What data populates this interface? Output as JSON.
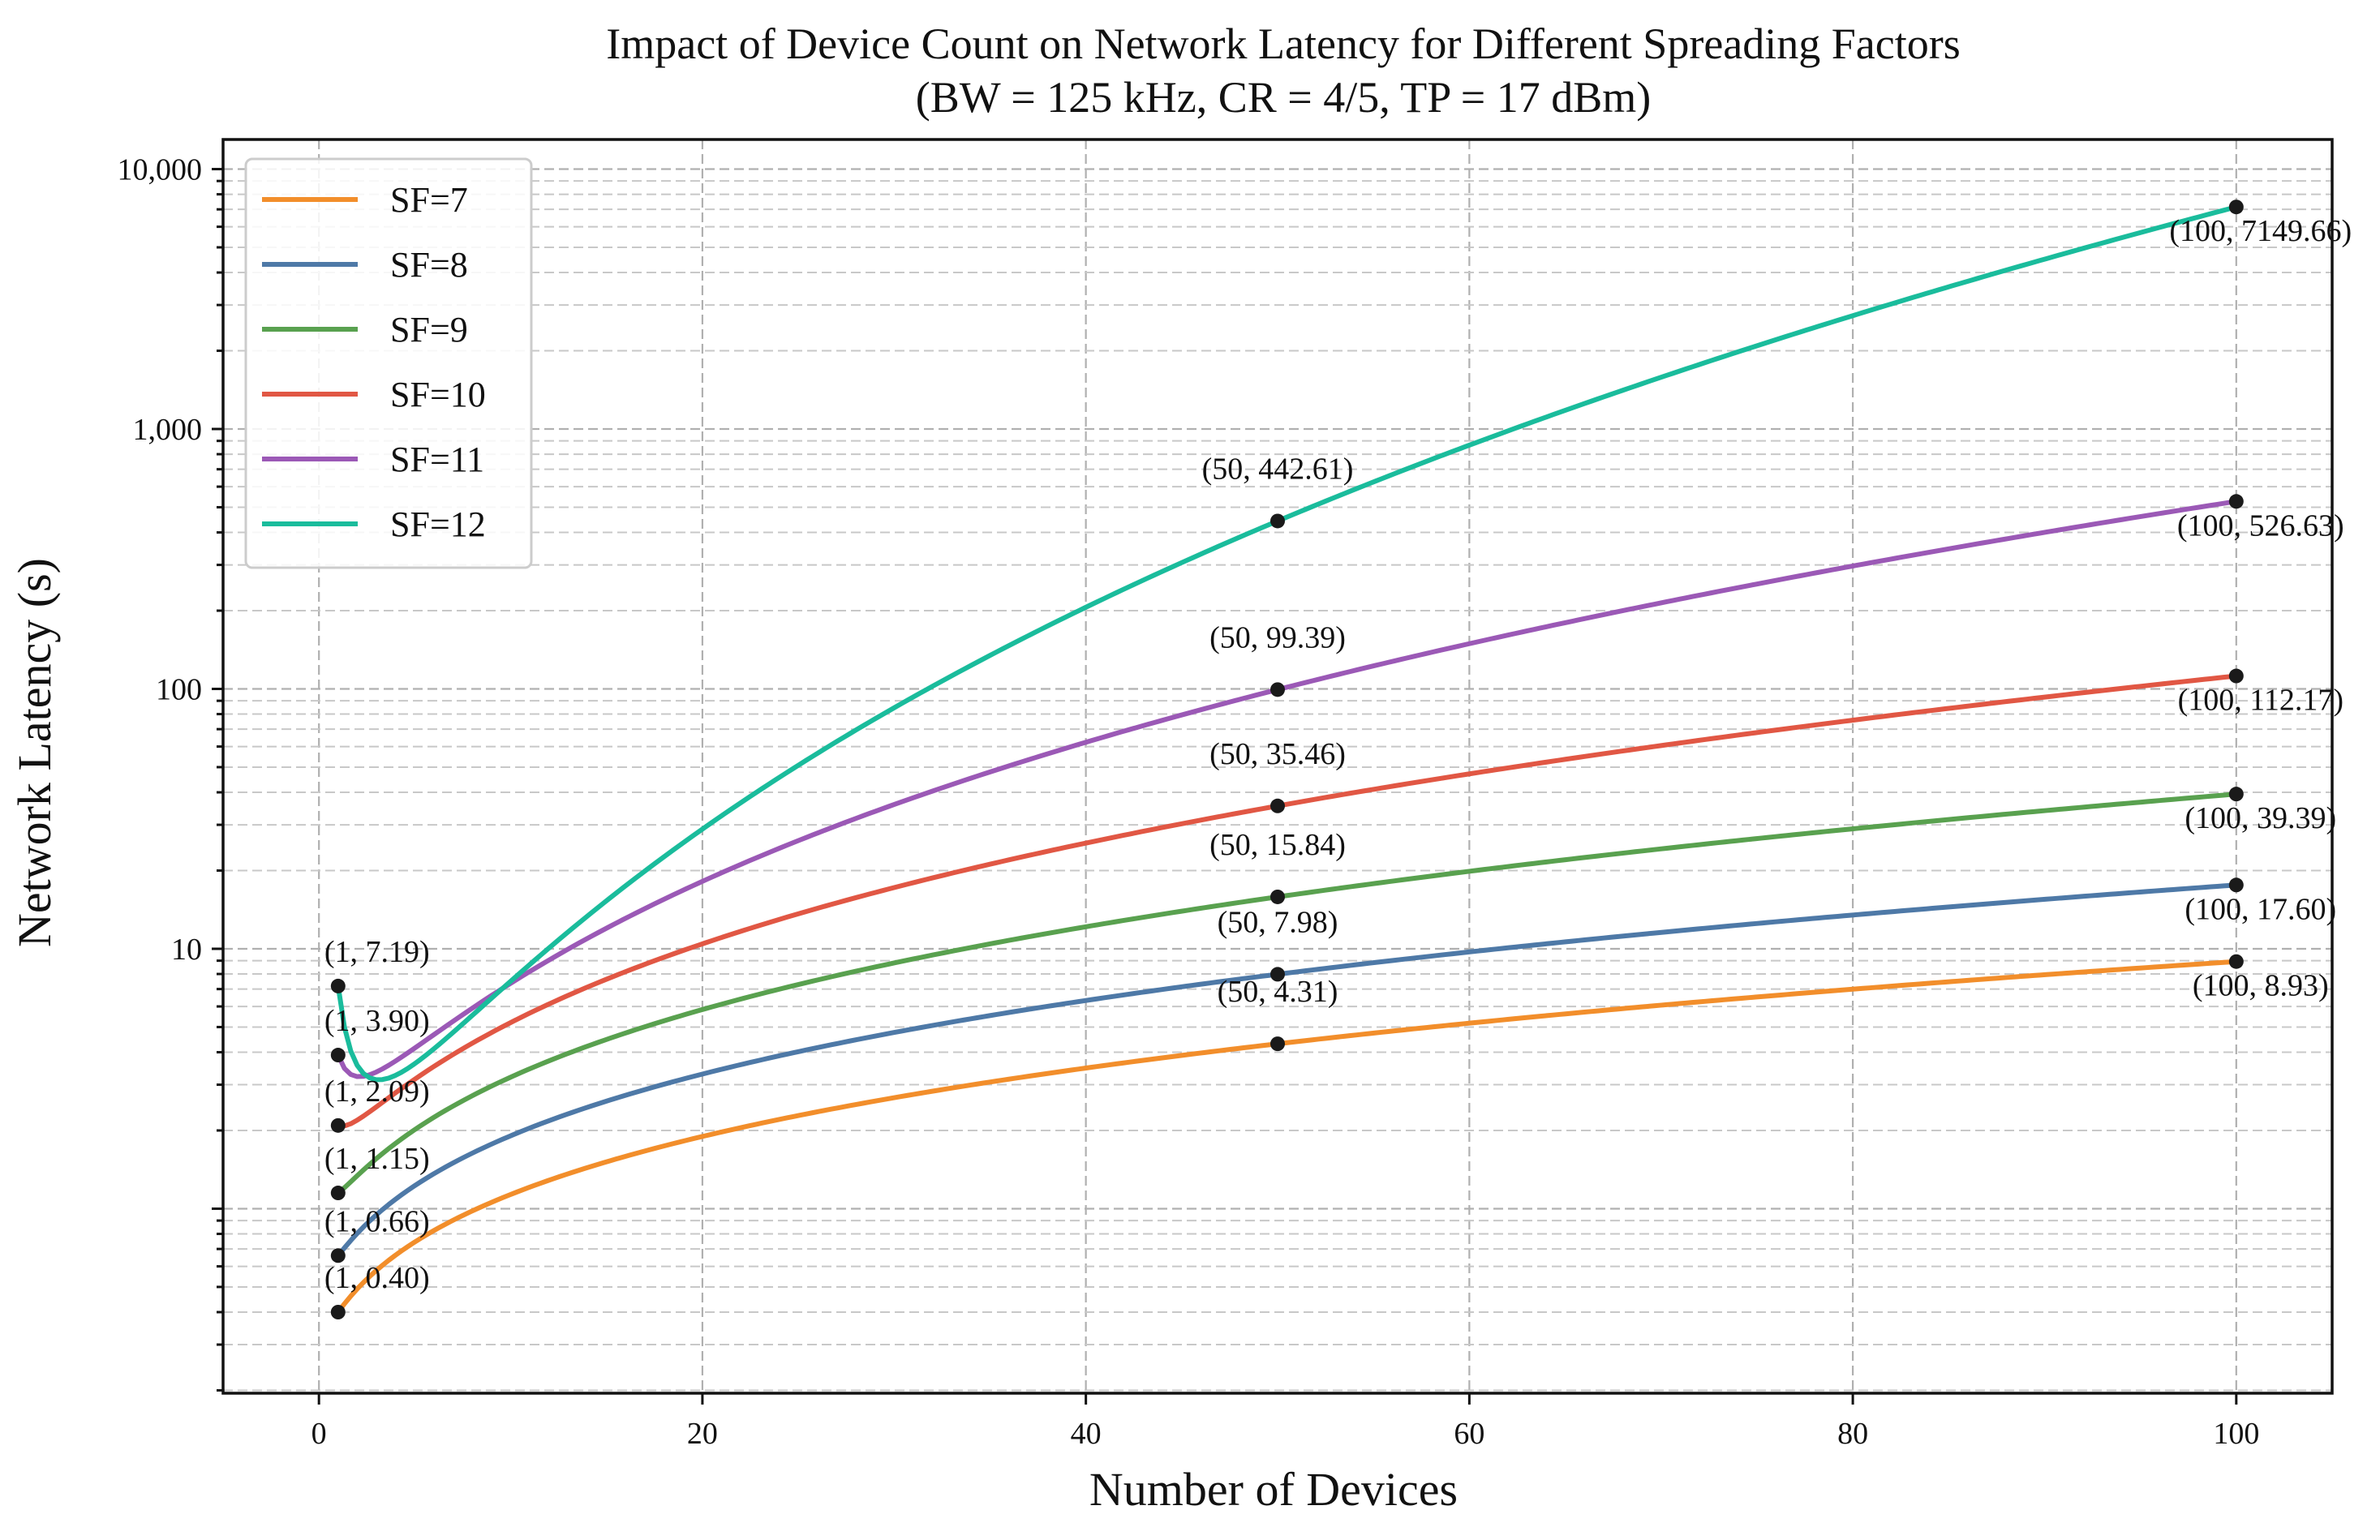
{
  "chart_data": {
    "type": "line",
    "title": "Impact of Device Count on Network Latency for Different Spreading Factors",
    "subtitle": "(BW = 125 kHz, CR = 4/5, TP = 17 dBm)",
    "xlabel": "Number of Devices",
    "ylabel": "Network Latency (s)",
    "xlim": [
      -5,
      105
    ],
    "ylim": [
      0.195,
      13000
    ],
    "yscale": "log",
    "grid": true,
    "legend_position": "top-left",
    "x_ticks": [
      0,
      20,
      40,
      60,
      80,
      100
    ],
    "x_tick_labels": [
      "0",
      "20",
      "40",
      "60",
      "80",
      "100"
    ],
    "y_ticks": [
      10,
      100,
      1000,
      10000
    ],
    "y_tick_labels": [
      "10",
      "100",
      "1,000",
      "10,000"
    ],
    "series": [
      {
        "name": "SF=7",
        "color": "#f28e2b",
        "points": [
          [
            1,
            0.4
          ],
          [
            50,
            4.31
          ],
          [
            100,
            8.93
          ]
        ],
        "labels": [
          "(1, 0.40)",
          "(50, 4.31)",
          "(100, 8.93)"
        ]
      },
      {
        "name": "SF=8",
        "color": "#4e79a7",
        "points": [
          [
            1,
            0.66
          ],
          [
            50,
            7.98
          ],
          [
            100,
            17.6
          ]
        ],
        "labels": [
          "(1, 0.66)",
          "(50, 7.98)",
          "(100, 17.60)"
        ]
      },
      {
        "name": "SF=9",
        "color": "#59a14f",
        "points": [
          [
            1,
            1.15
          ],
          [
            50,
            15.84
          ],
          [
            100,
            39.39
          ]
        ],
        "labels": [
          "(1, 1.15)",
          "(50, 15.84)",
          "(100, 39.39)"
        ]
      },
      {
        "name": "SF=10",
        "color": "#e15744",
        "points": [
          [
            1,
            2.09
          ],
          [
            50,
            35.46
          ],
          [
            100,
            112.17
          ]
        ],
        "labels": [
          "(1, 2.09)",
          "(50, 35.46)",
          "(100, 112.17)"
        ]
      },
      {
        "name": "SF=11",
        "color": "#9b59b6",
        "points": [
          [
            1,
            3.9
          ],
          [
            50,
            99.39
          ],
          [
            100,
            526.63
          ]
        ],
        "labels": [
          "(1, 3.90)",
          "(50, 99.39)",
          "(100, 526.63)"
        ]
      },
      {
        "name": "SF=12",
        "color": "#1abc9c",
        "points": [
          [
            1,
            7.19
          ],
          [
            50,
            442.61
          ],
          [
            100,
            7149.66
          ]
        ],
        "labels": [
          "(1, 7.19)",
          "(50, 442.61)",
          "(100, 7149.66)"
        ]
      }
    ]
  }
}
